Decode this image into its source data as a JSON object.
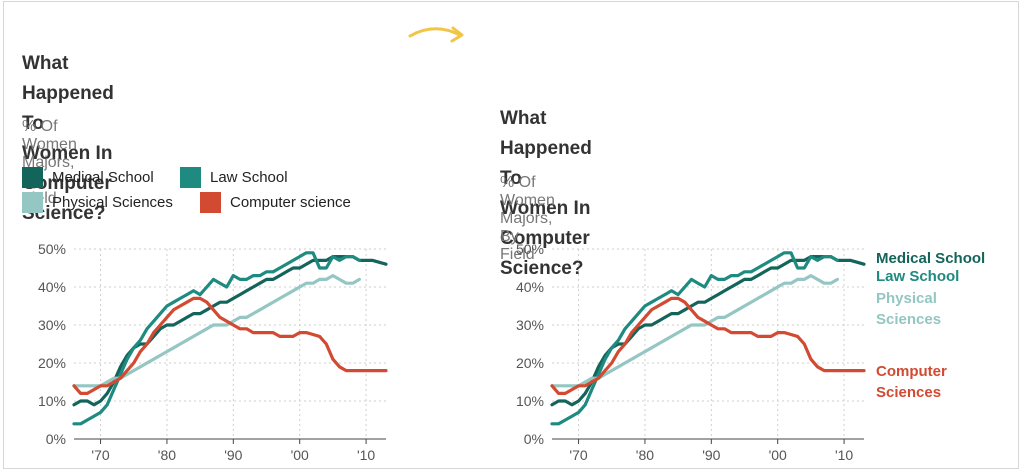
{
  "colors": {
    "medical": "#13645b",
    "law": "#1e8a80",
    "physical": "#94c6c3",
    "cs": "#d24a31",
    "arrow": "#f2c549"
  },
  "arrow_icon": "curved-arrow-right-icon",
  "left_panel": {
    "title_line1": "What Happened To Women In",
    "title_line2": "Computer Science?",
    "subtitle": "% Of Women Majors, By Field",
    "legend": [
      {
        "label": "Medical School",
        "color_key": "medical"
      },
      {
        "label": "Law School",
        "color_key": "law"
      },
      {
        "label": "Physical Sciences",
        "color_key": "physical"
      },
      {
        "label": "Computer science",
        "color_key": "cs"
      }
    ]
  },
  "right_panel": {
    "title_line1": "What Happened To Women In",
    "title_line2": "Computer Science?",
    "subtitle": "% Of Women Majors, By Field",
    "labels": {
      "medical": "Medical School",
      "law": "Law School",
      "physical_1": "Physical",
      "physical_2": "Sciences",
      "cs_1": "Computer",
      "cs_2": "Sciences"
    }
  },
  "chart_data": {
    "type": "line",
    "xlim": [
      1966,
      2013
    ],
    "ylim": [
      0,
      50
    ],
    "x_ticks": [
      1970,
      1980,
      1990,
      2000,
      2010
    ],
    "x_tick_labels": [
      "'70",
      "'80",
      "'90",
      "'00",
      "'10"
    ],
    "y_ticks": [
      0,
      10,
      20,
      30,
      40,
      50
    ],
    "y_tick_labels": [
      "0%",
      "10%",
      "20%",
      "30%",
      "40%",
      "50%"
    ],
    "grid": true,
    "series": [
      {
        "name": "Medical School",
        "color_key": "medical",
        "x": [
          1966,
          1967,
          1968,
          1969,
          1970,
          1971,
          1972,
          1973,
          1974,
          1975,
          1976,
          1977,
          1978,
          1979,
          1980,
          1981,
          1982,
          1983,
          1984,
          1985,
          1986,
          1987,
          1988,
          1989,
          1990,
          1991,
          1992,
          1993,
          1994,
          1995,
          1996,
          1997,
          1998,
          1999,
          2000,
          2001,
          2002,
          2003,
          2004,
          2005,
          2006,
          2007,
          2008,
          2009,
          2010,
          2011,
          2012,
          2013
        ],
        "y": [
          9,
          10,
          10,
          9,
          10,
          12,
          15,
          19,
          22,
          24,
          25,
          25,
          27,
          29,
          30,
          30,
          31,
          32,
          33,
          33,
          34,
          35,
          36,
          36,
          37,
          38,
          39,
          40,
          41,
          42,
          42,
          43,
          44,
          45,
          45,
          46,
          47,
          47,
          47,
          48,
          48,
          48,
          48,
          47,
          47,
          47,
          46.5,
          46
        ]
      },
      {
        "name": "Law School",
        "color_key": "law",
        "x": [
          1966,
          1967,
          1968,
          1969,
          1970,
          1971,
          1972,
          1973,
          1974,
          1975,
          1976,
          1977,
          1978,
          1979,
          1980,
          1981,
          1982,
          1983,
          1984,
          1985,
          1986,
          1987,
          1988,
          1989,
          1990,
          1991,
          1992,
          1993,
          1994,
          1995,
          1996,
          1997,
          1998,
          1999,
          2000,
          2001,
          2002,
          2003,
          2004,
          2005,
          2006,
          2007,
          2008,
          2009
        ],
        "y": [
          4,
          4,
          5,
          6,
          7,
          9,
          13,
          17,
          21,
          24,
          26,
          29,
          31,
          33,
          35,
          36,
          37,
          38,
          39,
          38,
          40,
          42,
          41,
          40,
          43,
          42,
          42,
          43,
          43,
          44,
          44,
          45,
          46,
          47,
          48,
          49,
          49,
          45,
          45,
          48,
          47,
          48,
          48,
          47
        ]
      },
      {
        "name": "Physical Sciences",
        "color_key": "physical",
        "x": [
          1966,
          1967,
          1968,
          1969,
          1970,
          1971,
          1972,
          1973,
          1974,
          1975,
          1976,
          1977,
          1978,
          1979,
          1980,
          1981,
          1982,
          1983,
          1984,
          1985,
          1986,
          1987,
          1988,
          1989,
          1990,
          1991,
          1992,
          1993,
          1994,
          1995,
          1996,
          1997,
          1998,
          1999,
          2000,
          2001,
          2002,
          2003,
          2004,
          2005,
          2006,
          2007,
          2008,
          2009
        ],
        "y": [
          14,
          14,
          14,
          14,
          14,
          15,
          16,
          16,
          17,
          18,
          19,
          20,
          21,
          22,
          23,
          24,
          25,
          26,
          27,
          28,
          29,
          30,
          30,
          30,
          31,
          32,
          32,
          33,
          34,
          35,
          36,
          37,
          38,
          39,
          40,
          41,
          41,
          42,
          42,
          43,
          42,
          41,
          41,
          42
        ]
      },
      {
        "name": "Computer science",
        "color_key": "cs",
        "x": [
          1966,
          1967,
          1968,
          1969,
          1970,
          1971,
          1972,
          1973,
          1974,
          1975,
          1976,
          1977,
          1978,
          1979,
          1980,
          1981,
          1982,
          1983,
          1984,
          1985,
          1986,
          1987,
          1988,
          1989,
          1990,
          1991,
          1992,
          1993,
          1994,
          1995,
          1996,
          1997,
          1998,
          1999,
          2000,
          2001,
          2002,
          2003,
          2004,
          2005,
          2006,
          2007,
          2008,
          2009,
          2010,
          2011,
          2012,
          2013
        ],
        "y": [
          14,
          12,
          12,
          13,
          14,
          14,
          15,
          16,
          18,
          20,
          23,
          25,
          28,
          30,
          32,
          34,
          35,
          36,
          37,
          37,
          36,
          34,
          32,
          31,
          30,
          29,
          29,
          28,
          28,
          28,
          28,
          27,
          27,
          27,
          28,
          28,
          27.5,
          27,
          25,
          21,
          19,
          18,
          18,
          18,
          18,
          18,
          18,
          18
        ]
      }
    ]
  }
}
